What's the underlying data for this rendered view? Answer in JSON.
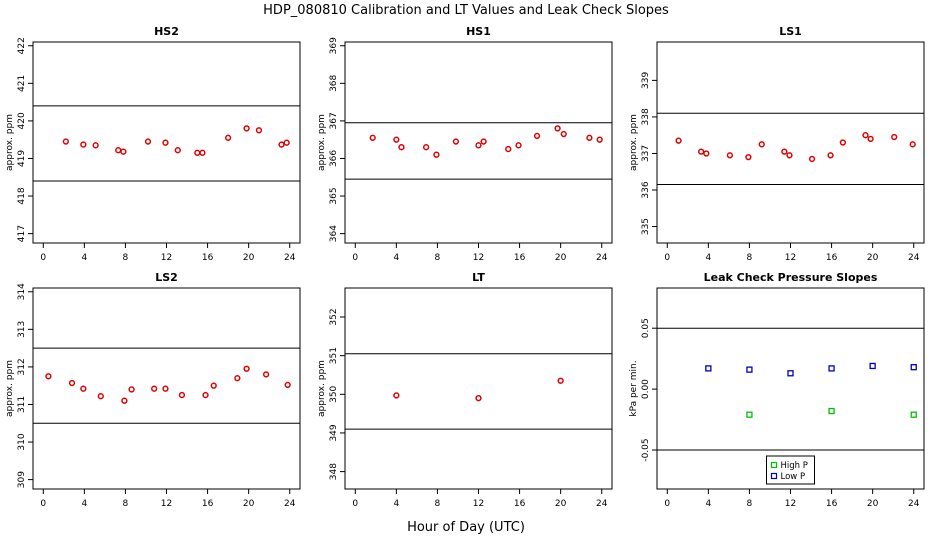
{
  "figure": {
    "title": "HDP_080810  Calibration and LT Values and Leak Check Slopes",
    "xlabel": "Hour of Day (UTC)"
  },
  "chart_data": [
    {
      "type": "scatter",
      "title": "HS2",
      "ylabel": "approx. ppm",
      "xlim": [
        -1,
        25
      ],
      "ylim": [
        416.75,
        422.1
      ],
      "xticks": [
        0,
        4,
        8,
        12,
        16,
        20,
        24
      ],
      "yticks": [
        417,
        418,
        419,
        420,
        421,
        422
      ],
      "hlines": [
        420.4,
        418.4
      ],
      "point_color": "#e00000",
      "x": [
        2.2,
        3.9,
        5.1,
        7.3,
        7.8,
        10.2,
        11.9,
        13.1,
        15.0,
        15.5,
        18.0,
        19.8,
        21.0,
        23.2,
        23.7
      ],
      "y": [
        419.45,
        419.37,
        419.35,
        419.22,
        419.18,
        419.45,
        419.42,
        419.22,
        419.15,
        419.15,
        419.55,
        419.8,
        419.75,
        419.37,
        419.42
      ]
    },
    {
      "type": "scatter",
      "title": "HS1",
      "ylabel": "approx. ppm",
      "xlim": [
        -1,
        25
      ],
      "ylim": [
        363.75,
        369.1
      ],
      "xticks": [
        0,
        4,
        8,
        12,
        16,
        20,
        24
      ],
      "yticks": [
        364,
        365,
        366,
        367,
        368,
        369
      ],
      "hlines": [
        366.95,
        365.45
      ],
      "point_color": "#e00000",
      "x": [
        1.7,
        4.0,
        4.5,
        6.9,
        7.9,
        9.8,
        12.0,
        12.5,
        14.9,
        15.9,
        17.7,
        19.7,
        20.3,
        22.8,
        23.8
      ],
      "y": [
        366.55,
        366.5,
        366.3,
        366.3,
        366.1,
        366.45,
        366.35,
        366.45,
        366.25,
        366.35,
        366.6,
        366.8,
        366.65,
        366.55,
        366.5
      ]
    },
    {
      "type": "scatter",
      "title": "LS1",
      "ylabel": "approx. ppm",
      "xlim": [
        -1,
        25
      ],
      "ylim": [
        334.55,
        340.05
      ],
      "xticks": [
        0,
        4,
        8,
        12,
        16,
        20,
        24
      ],
      "yticks": [
        335,
        336,
        337,
        338,
        339
      ],
      "hlines": [
        338.1,
        336.15
      ],
      "point_color": "#e00000",
      "x": [
        1.1,
        3.3,
        3.8,
        6.1,
        7.9,
        9.2,
        11.4,
        11.9,
        14.1,
        15.9,
        17.1,
        19.3,
        19.8,
        22.1,
        23.9
      ],
      "y": [
        337.35,
        337.05,
        337.0,
        336.95,
        336.9,
        337.25,
        337.05,
        336.95,
        336.85,
        336.95,
        337.3,
        337.5,
        337.4,
        337.45,
        337.25
      ]
    },
    {
      "type": "scatter",
      "title": "LS2",
      "ylabel": "approx. ppm",
      "xlim": [
        -1,
        25
      ],
      "ylim": [
        308.75,
        314.1
      ],
      "xticks": [
        0,
        4,
        8,
        12,
        16,
        20,
        24
      ],
      "yticks": [
        309,
        310,
        311,
        312,
        313,
        314
      ],
      "hlines": [
        312.5,
        310.5
      ],
      "point_color": "#e00000",
      "x": [
        0.5,
        2.8,
        3.9,
        5.6,
        7.9,
        8.6,
        10.8,
        11.9,
        13.5,
        15.8,
        16.6,
        18.9,
        19.8,
        21.7,
        23.8
      ],
      "y": [
        311.75,
        311.57,
        311.42,
        311.22,
        311.1,
        311.4,
        311.42,
        311.42,
        311.25,
        311.25,
        311.5,
        311.7,
        311.95,
        311.8,
        311.52
      ]
    },
    {
      "type": "scatter",
      "title": "LT",
      "ylabel": "approx. ppm",
      "xlim": [
        -1,
        25
      ],
      "ylim": [
        347.55,
        352.75
      ],
      "xticks": [
        0,
        4,
        8,
        12,
        16,
        20,
        24
      ],
      "yticks": [
        348,
        349,
        350,
        351,
        352
      ],
      "hlines": [
        351.05,
        349.1
      ],
      "point_color": "#e00000",
      "x": [
        4.0,
        12.0,
        20.0
      ],
      "y": [
        349.97,
        349.9,
        350.35
      ]
    },
    {
      "type": "scatter",
      "title": "Leak Check Pressure Slopes",
      "ylabel": "kPa per min.",
      "xlim": [
        -1,
        25
      ],
      "ylim": [
        -0.082,
        0.083
      ],
      "xticks": [
        0,
        4,
        8,
        12,
        16,
        20,
        24
      ],
      "yticks": [
        -0.05,
        0.0,
        0.05
      ],
      "ytick_labels": [
        "-0.05",
        "0.00",
        "0.05"
      ],
      "hlines": [
        0.05,
        -0.05
      ],
      "legend": "bottom-center",
      "series": [
        {
          "name": "High P",
          "color": "#00c000",
          "x": [
            8.0,
            16.0,
            24.0
          ],
          "y": [
            -0.021,
            -0.018,
            -0.021
          ]
        },
        {
          "name": "Low P",
          "color": "#0000c0",
          "x": [
            4.0,
            8.0,
            12.0,
            16.0,
            20.0,
            24.0
          ],
          "y": [
            0.017,
            0.016,
            0.013,
            0.017,
            0.019,
            0.018
          ]
        }
      ]
    }
  ]
}
